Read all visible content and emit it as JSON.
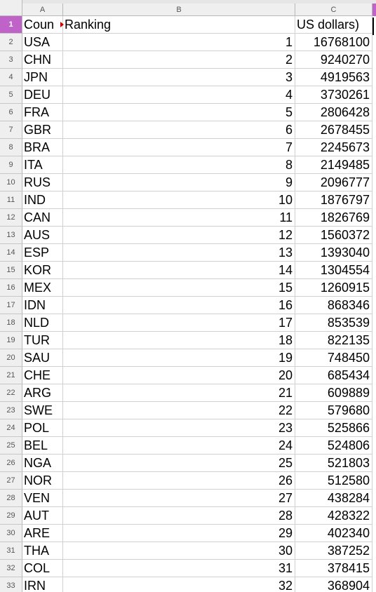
{
  "columns": [
    "A",
    "B",
    "C"
  ],
  "header_row": {
    "row": "1",
    "a": "Coun",
    "b": "Ranking",
    "c": "US dollars)"
  },
  "rows": [
    {
      "row": "2",
      "a": "USA",
      "b": "1",
      "c": "16768100"
    },
    {
      "row": "3",
      "a": "CHN",
      "b": "2",
      "c": "9240270"
    },
    {
      "row": "4",
      "a": "JPN",
      "b": "3",
      "c": "4919563"
    },
    {
      "row": "5",
      "a": "DEU",
      "b": "4",
      "c": "3730261"
    },
    {
      "row": "6",
      "a": "FRA",
      "b": "5",
      "c": "2806428"
    },
    {
      "row": "7",
      "a": "GBR",
      "b": "6",
      "c": "2678455"
    },
    {
      "row": "8",
      "a": "BRA",
      "b": "7",
      "c": "2245673"
    },
    {
      "row": "9",
      "a": "ITA",
      "b": "8",
      "c": "2149485"
    },
    {
      "row": "10",
      "a": "RUS",
      "b": "9",
      "c": "2096777"
    },
    {
      "row": "11",
      "a": "IND",
      "b": "10",
      "c": "1876797"
    },
    {
      "row": "12",
      "a": "CAN",
      "b": "11",
      "c": "1826769"
    },
    {
      "row": "13",
      "a": "AUS",
      "b": "12",
      "c": "1560372"
    },
    {
      "row": "14",
      "a": "ESP",
      "b": "13",
      "c": "1393040"
    },
    {
      "row": "15",
      "a": "KOR",
      "b": "14",
      "c": "1304554"
    },
    {
      "row": "16",
      "a": "MEX",
      "b": "15",
      "c": "1260915"
    },
    {
      "row": "17",
      "a": "IDN",
      "b": "16",
      "c": "868346"
    },
    {
      "row": "18",
      "a": "NLD",
      "b": "17",
      "c": "853539"
    },
    {
      "row": "19",
      "a": "TUR",
      "b": "18",
      "c": "822135"
    },
    {
      "row": "20",
      "a": "SAU",
      "b": "19",
      "c": "748450"
    },
    {
      "row": "21",
      "a": "CHE",
      "b": "20",
      "c": "685434"
    },
    {
      "row": "22",
      "a": "ARG",
      "b": "21",
      "c": "609889"
    },
    {
      "row": "23",
      "a": "SWE",
      "b": "22",
      "c": "579680"
    },
    {
      "row": "24",
      "a": "POL",
      "b": "23",
      "c": "525866"
    },
    {
      "row": "25",
      "a": "BEL",
      "b": "24",
      "c": "524806"
    },
    {
      "row": "26",
      "a": "NGA",
      "b": "25",
      "c": "521803"
    },
    {
      "row": "27",
      "a": "NOR",
      "b": "26",
      "c": "512580"
    },
    {
      "row": "28",
      "a": "VEN",
      "b": "27",
      "c": "438284"
    },
    {
      "row": "29",
      "a": "AUT",
      "b": "28",
      "c": "428322"
    },
    {
      "row": "30",
      "a": "ARE",
      "b": "29",
      "c": "402340"
    },
    {
      "row": "31",
      "a": "THA",
      "b": "30",
      "c": "387252"
    },
    {
      "row": "32",
      "a": "COL",
      "b": "31",
      "c": "378415"
    },
    {
      "row": "33",
      "a": "IRN",
      "b": "32",
      "c": "368904"
    }
  ],
  "colors": {
    "selection_accent": "#bf63c9",
    "header_bg": "#efefef",
    "grid": "#d0d0d0"
  }
}
